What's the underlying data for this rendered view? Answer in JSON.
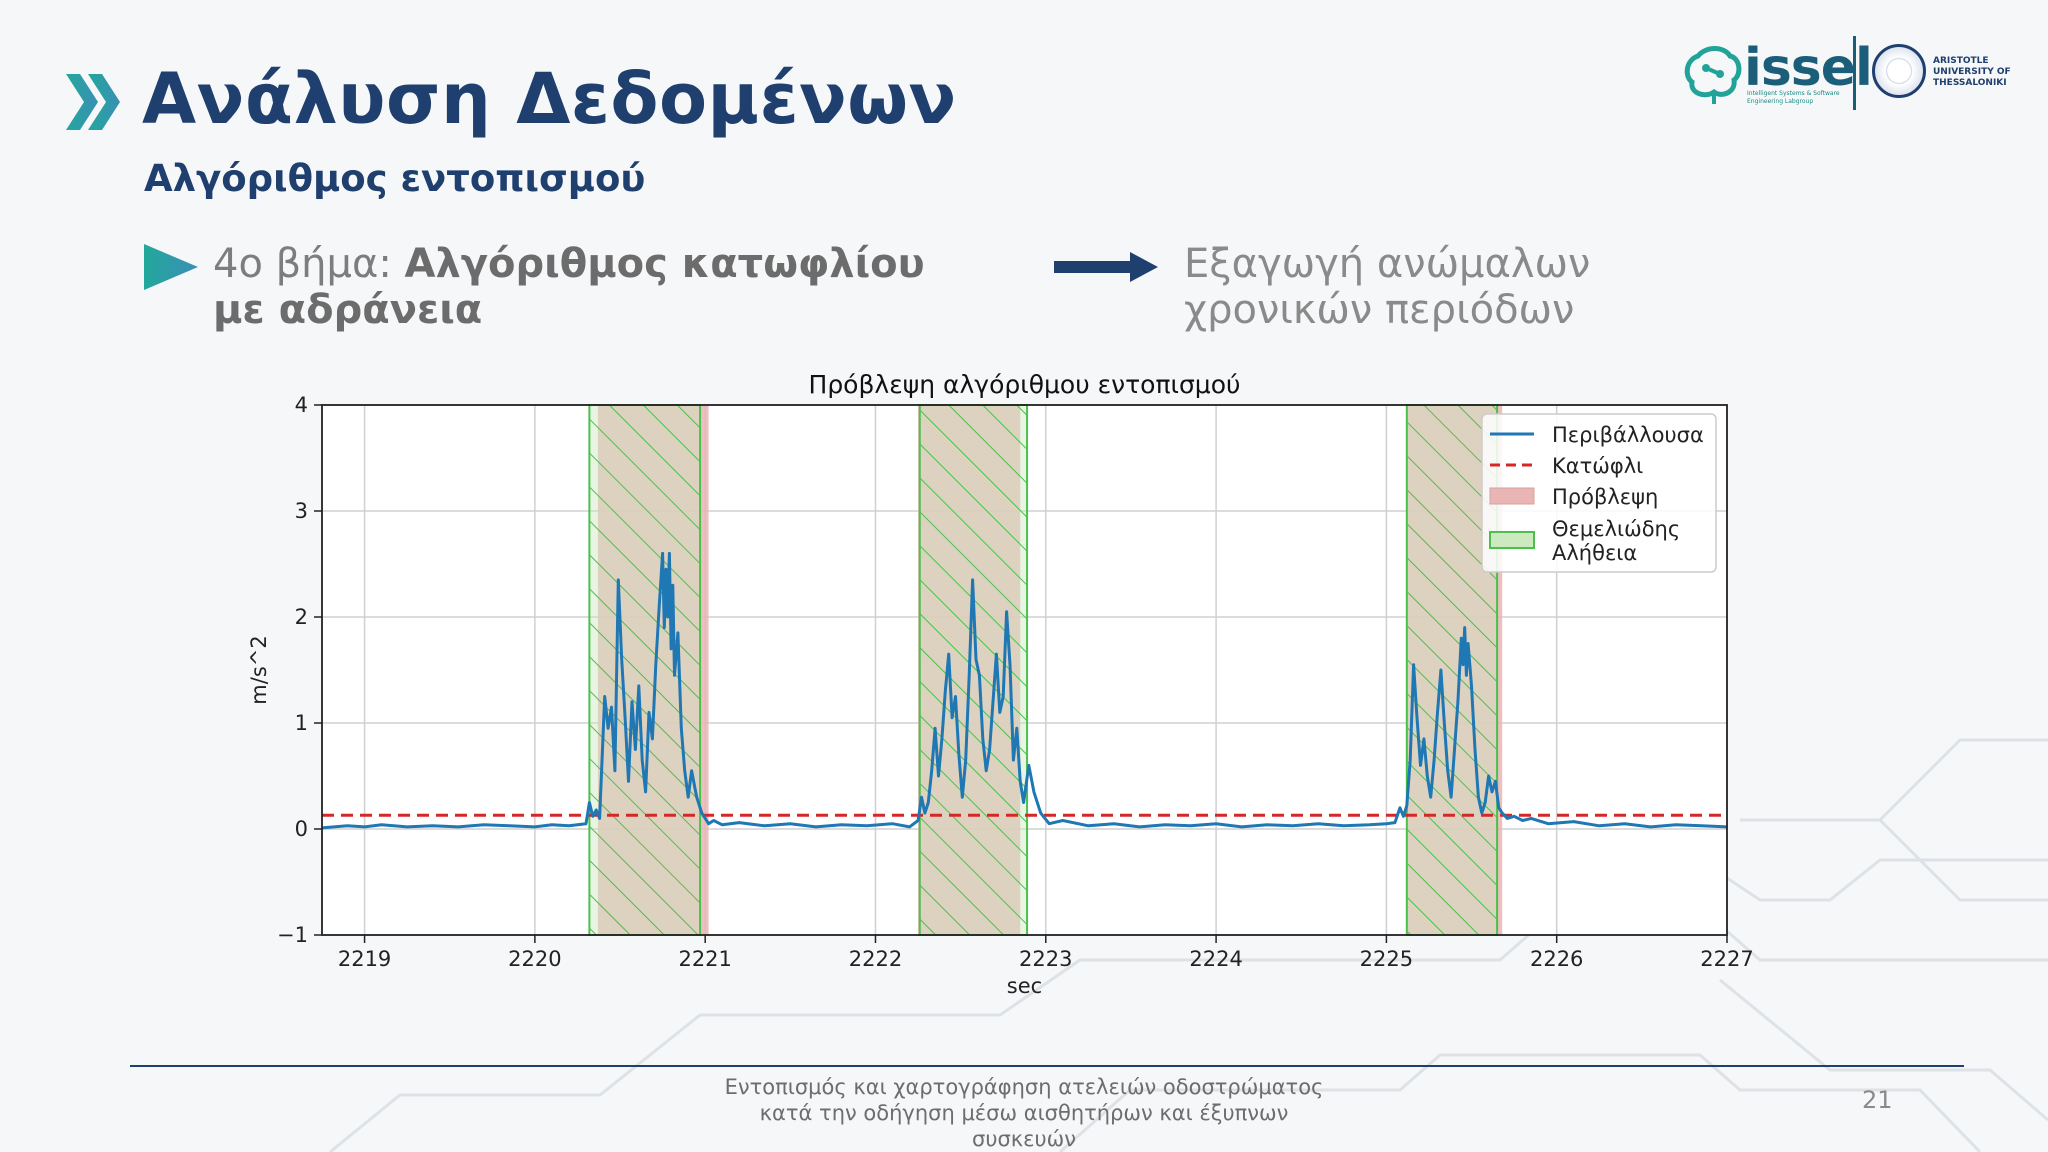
{
  "slide": {
    "title": "Ανάλυση Δεδομένων",
    "subtitle": "Αλγόριθμος εντοπισμού",
    "step_prefix": "4ο βήμα: ",
    "step_bold": "Αλγόριθμος κατωφλίου με αδράνεια",
    "result": "Εξαγωγή ανώμαλων χρονικών περιόδων",
    "footer": "Εντοπισμός και χαρτογράφηση ατελειών οδοστρώματος κατά την οδήγηση μέσω αισθητήρων και έξυπνων συσκευών",
    "page_number": "21",
    "accent_color": "#1f3f6e",
    "teal_color": "#2a9d95"
  },
  "logo": {
    "issel_text": "issel",
    "issel_sub": "Intelligent Systems & Software Engineering Labgroup",
    "university_text": "ARISTOTLE UNIVERSITY OF THESSALONIKI",
    "icon": "brain-circuit-icon",
    "seal_icon": "university-seal-icon"
  },
  "chart_data": {
    "type": "line",
    "title": "Πρόβλεψη αλγόριθμου εντοπισμού",
    "xlabel": "sec",
    "ylabel": "m/s^2",
    "xlim": [
      2218.75,
      2227
    ],
    "ylim": [
      -1,
      4
    ],
    "xticks": [
      2219,
      2220,
      2221,
      2222,
      2223,
      2224,
      2225,
      2226,
      2227
    ],
    "yticks": [
      -1,
      0,
      1,
      2,
      3,
      4
    ],
    "grid": true,
    "legend_position": "top-right",
    "legend": [
      "Περιβάλλουσα",
      "Κατώφλι",
      "Πρόβλεψη",
      "Θεμελιώδης Αλήθεια"
    ],
    "colors": {
      "envelope": "#1f77b4",
      "threshold": "#d62728",
      "prediction_fill": "#e9b5b5",
      "ground_truth_edge": "#4cc04c",
      "ground_truth_fill": "#cde9c0"
    },
    "threshold": 0.13,
    "prediction_intervals": [
      [
        2220.37,
        2221.02
      ],
      [
        2222.25,
        2222.85
      ],
      [
        2225.12,
        2225.68
      ]
    ],
    "ground_truth_intervals": [
      [
        2220.32,
        2220.97
      ],
      [
        2222.26,
        2222.89
      ],
      [
        2225.12,
        2225.65
      ]
    ],
    "series": [
      {
        "name": "Περιβάλλουσα",
        "x": [
          2218.75,
          2218.9,
          2219.0,
          2219.1,
          2219.25,
          2219.4,
          2219.55,
          2219.7,
          2219.85,
          2220.0,
          2220.1,
          2220.2,
          2220.3,
          2220.32,
          2220.34,
          2220.36,
          2220.38,
          2220.41,
          2220.43,
          2220.45,
          2220.47,
          2220.49,
          2220.51,
          2220.53,
          2220.55,
          2220.57,
          2220.59,
          2220.61,
          2220.63,
          2220.65,
          2220.67,
          2220.69,
          2220.71,
          2220.73,
          2220.75,
          2220.76,
          2220.77,
          2220.78,
          2220.79,
          2220.8,
          2220.81,
          2220.82,
          2220.84,
          2220.86,
          2220.88,
          2220.9,
          2220.92,
          2220.95,
          2220.98,
          2221.02,
          2221.05,
          2221.1,
          2221.2,
          2221.35,
          2221.5,
          2221.65,
          2221.8,
          2221.95,
          2222.1,
          2222.2,
          2222.25,
          2222.27,
          2222.29,
          2222.31,
          2222.33,
          2222.35,
          2222.37,
          2222.39,
          2222.41,
          2222.43,
          2222.45,
          2222.47,
          2222.49,
          2222.51,
          2222.53,
          2222.55,
          2222.57,
          2222.59,
          2222.61,
          2222.63,
          2222.65,
          2222.67,
          2222.69,
          2222.71,
          2222.73,
          2222.75,
          2222.77,
          2222.79,
          2222.81,
          2222.83,
          2222.85,
          2222.87,
          2222.9,
          2222.93,
          2222.97,
          2223.02,
          2223.1,
          2223.25,
          2223.4,
          2223.55,
          2223.7,
          2223.85,
          2224.0,
          2224.15,
          2224.3,
          2224.45,
          2224.6,
          2224.75,
          2224.9,
          2225.0,
          2225.05,
          2225.08,
          2225.1,
          2225.12,
          2225.14,
          2225.16,
          2225.18,
          2225.2,
          2225.22,
          2225.24,
          2225.26,
          2225.28,
          2225.3,
          2225.32,
          2225.34,
          2225.36,
          2225.38,
          2225.4,
          2225.42,
          2225.43,
          2225.44,
          2225.45,
          2225.46,
          2225.47,
          2225.48,
          2225.5,
          2225.52,
          2225.54,
          2225.56,
          2225.58,
          2225.6,
          2225.62,
          2225.64,
          2225.66,
          2225.68,
          2225.71,
          2225.75,
          2225.8,
          2225.85,
          2225.95,
          2226.1,
          2226.25,
          2226.4,
          2226.55,
          2226.7,
          2226.85,
          2227.0
        ],
        "y": [
          0.01,
          0.03,
          0.02,
          0.04,
          0.02,
          0.03,
          0.02,
          0.04,
          0.03,
          0.02,
          0.04,
          0.03,
          0.05,
          0.25,
          0.12,
          0.18,
          0.1,
          1.25,
          0.95,
          1.15,
          0.55,
          2.35,
          1.6,
          1.05,
          0.45,
          1.2,
          0.75,
          1.35,
          0.65,
          0.35,
          1.1,
          0.85,
          1.55,
          2.1,
          2.6,
          1.9,
          2.45,
          2.0,
          2.6,
          1.7,
          2.3,
          1.45,
          1.85,
          0.95,
          0.55,
          0.3,
          0.55,
          0.3,
          0.15,
          0.05,
          0.08,
          0.04,
          0.06,
          0.03,
          0.05,
          0.02,
          0.04,
          0.03,
          0.05,
          0.02,
          0.08,
          0.3,
          0.15,
          0.25,
          0.55,
          0.95,
          0.5,
          0.85,
          1.3,
          1.65,
          1.05,
          1.25,
          0.7,
          0.3,
          0.65,
          1.45,
          2.35,
          1.6,
          1.45,
          0.85,
          0.55,
          0.75,
          1.2,
          1.65,
          1.1,
          1.25,
          2.05,
          1.55,
          0.65,
          0.95,
          0.45,
          0.25,
          0.6,
          0.35,
          0.15,
          0.05,
          0.08,
          0.03,
          0.05,
          0.02,
          0.04,
          0.03,
          0.05,
          0.02,
          0.04,
          0.03,
          0.05,
          0.03,
          0.04,
          0.05,
          0.06,
          0.2,
          0.12,
          0.22,
          0.65,
          1.55,
          1.05,
          0.6,
          0.85,
          0.5,
          0.3,
          0.65,
          1.1,
          1.5,
          1.0,
          0.55,
          0.3,
          0.75,
          1.2,
          1.5,
          1.8,
          1.55,
          1.9,
          1.45,
          1.75,
          1.35,
          0.75,
          0.3,
          0.15,
          0.25,
          0.5,
          0.35,
          0.45,
          0.2,
          0.15,
          0.1,
          0.12,
          0.08,
          0.1,
          0.05,
          0.07,
          0.03,
          0.05,
          0.02,
          0.04,
          0.03,
          0.02
        ]
      }
    ]
  }
}
